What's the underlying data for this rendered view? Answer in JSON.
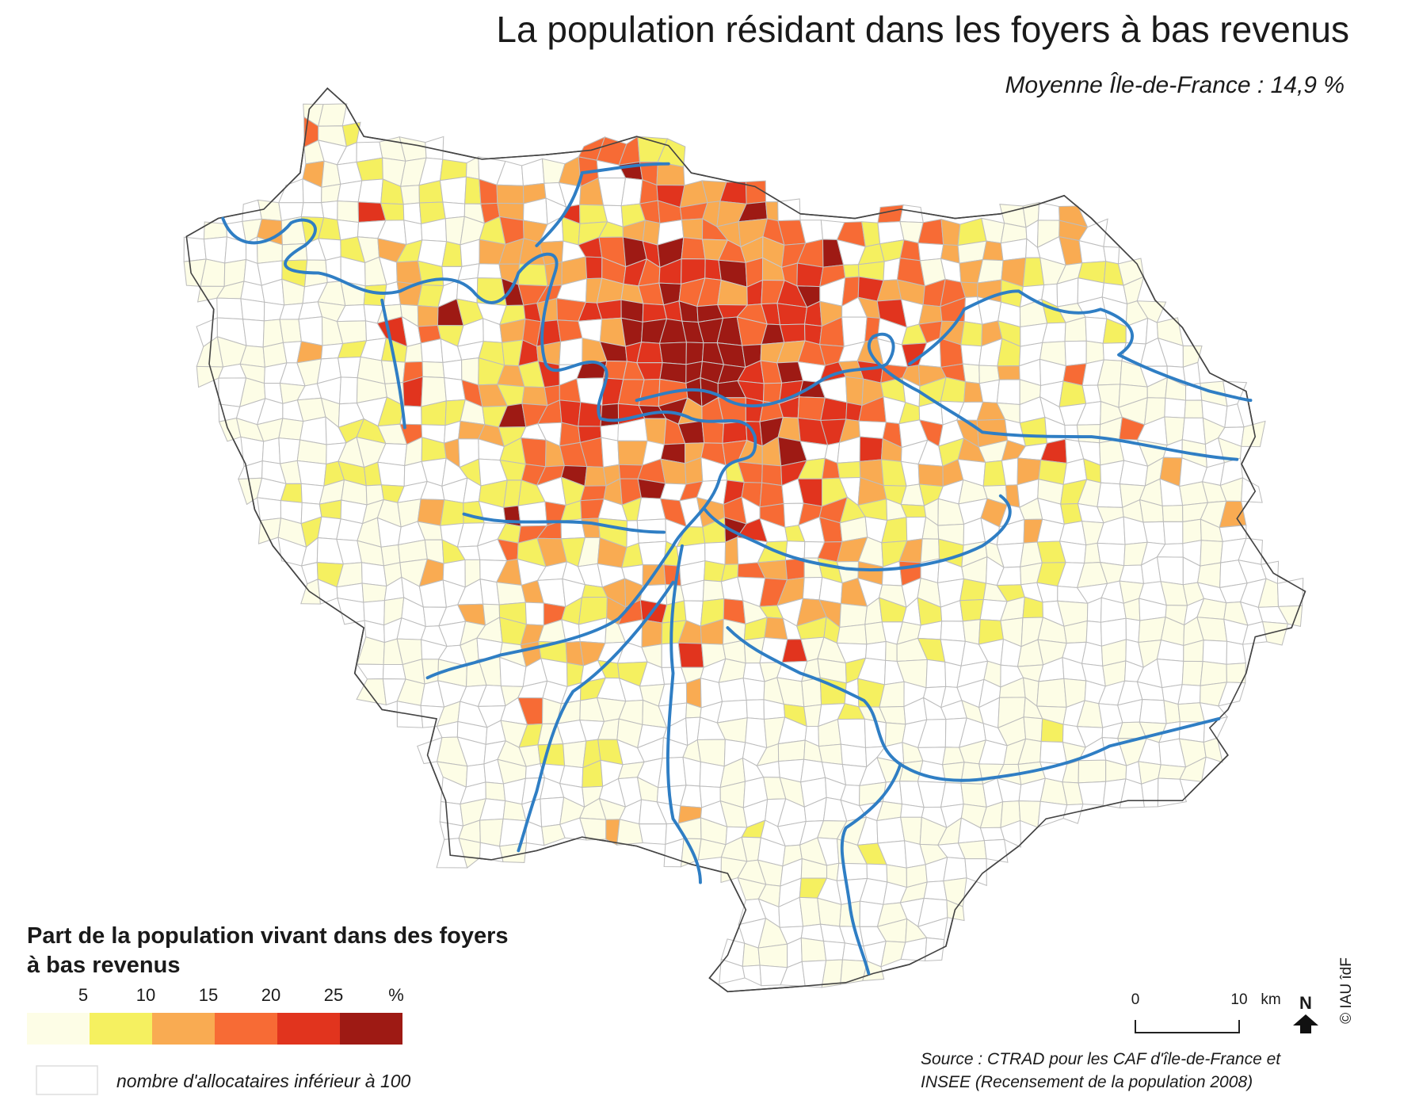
{
  "title": "La population résidant dans les foyers à bas revenus",
  "subtitle": "Moyenne Île-de-France : 14,9 %",
  "legend": {
    "title_lines": [
      "Part de la population vivant dans des foyers",
      "à bas revenus"
    ],
    "breaks": [
      5,
      10,
      15,
      20,
      25
    ],
    "unit": "%",
    "colors": [
      "#fdfde6",
      "#f5f060",
      "#f9ab52",
      "#f76b35",
      "#e1341e",
      "#9e1a14"
    ],
    "no_data_color": "#ffffff",
    "no_data_label": "nombre d'allocataires inférieur à 100"
  },
  "scale_bar": {
    "ticks": [
      0,
      10
    ],
    "unit": "km"
  },
  "north": "N",
  "credit": "© IAU îdF",
  "source_lines": [
    "Source : CTRAD pour les CAF d'île-de-France et",
    "INSEE (Recensement de la population 2008)"
  ]
}
